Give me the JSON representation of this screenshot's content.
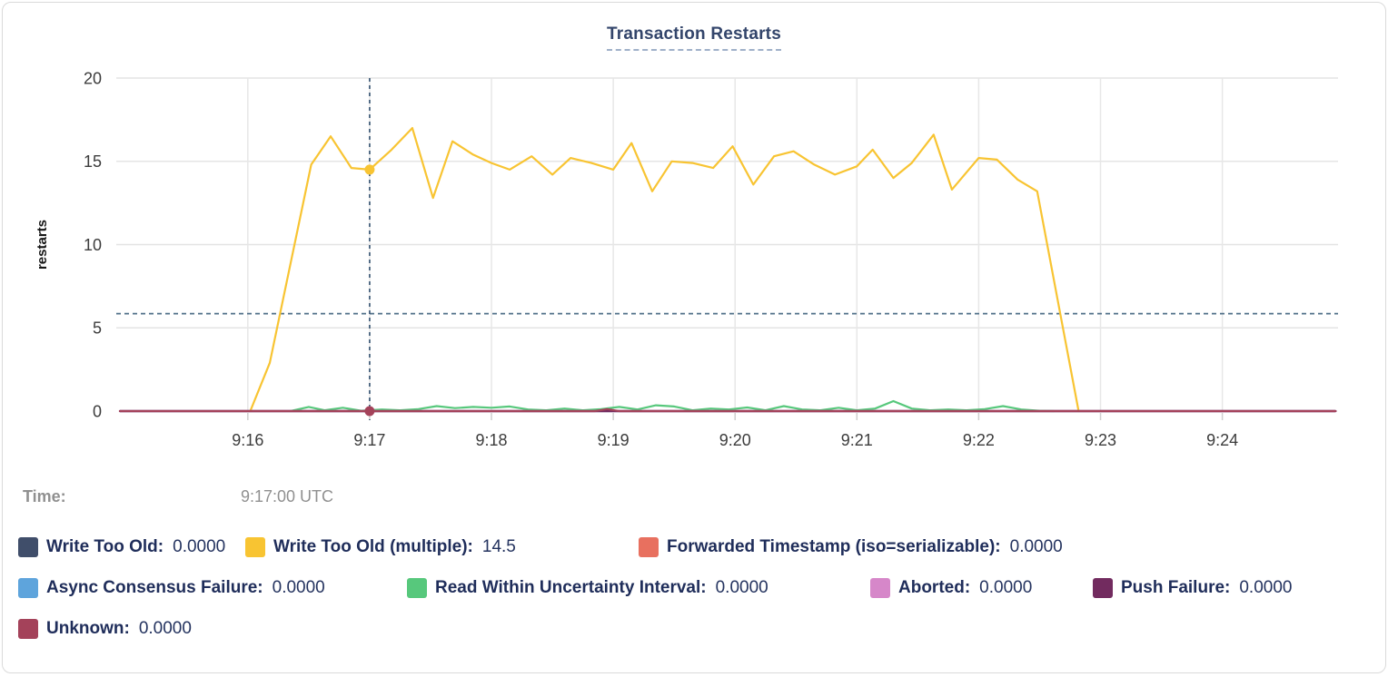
{
  "chart_data": {
    "type": "line",
    "title": "Transaction Restarts",
    "ylabel": "restarts",
    "ylim": [
      0,
      20
    ],
    "yticks": [
      0,
      5,
      10,
      15,
      20
    ],
    "x_range_minutes": [
      14.92,
      24.95
    ],
    "xticks": [
      {
        "t": 16,
        "label": "9:16"
      },
      {
        "t": 17,
        "label": "9:17"
      },
      {
        "t": 18,
        "label": "9:18"
      },
      {
        "t": 19,
        "label": "9:19"
      },
      {
        "t": 20,
        "label": "9:20"
      },
      {
        "t": 21,
        "label": "9:21"
      },
      {
        "t": 22,
        "label": "9:22"
      },
      {
        "t": 23,
        "label": "9:23"
      },
      {
        "t": 24,
        "label": "9:24"
      }
    ],
    "grid": true,
    "legend_position": "bottom",
    "mean_line_value": 5.85,
    "hover": {
      "t": 17,
      "time_label": "Time:",
      "time_value": "9:17:00 UTC",
      "points": [
        {
          "series": 1,
          "value": 14.5
        },
        {
          "series": 7,
          "value": 0
        }
      ]
    },
    "series": [
      {
        "label": "Write Too Old:",
        "value_display": "0.0000",
        "color": "#404E6A",
        "points": [
          [
            14.95,
            0
          ],
          [
            24.93,
            0
          ]
        ]
      },
      {
        "label": "Write Too Old (multiple):",
        "value_display": "14.5",
        "color": "#F8C432",
        "points": [
          [
            16.02,
            0
          ],
          [
            16.18,
            2.9
          ],
          [
            16.52,
            14.8
          ],
          [
            16.68,
            16.5
          ],
          [
            16.85,
            14.6
          ],
          [
            17.0,
            14.5
          ],
          [
            17.18,
            15.7
          ],
          [
            17.35,
            17.0
          ],
          [
            17.52,
            12.8
          ],
          [
            17.68,
            16.2
          ],
          [
            17.85,
            15.4
          ],
          [
            18.0,
            14.9
          ],
          [
            18.15,
            14.5
          ],
          [
            18.33,
            15.3
          ],
          [
            18.5,
            14.2
          ],
          [
            18.65,
            15.2
          ],
          [
            18.82,
            14.9
          ],
          [
            19.0,
            14.5
          ],
          [
            19.15,
            16.1
          ],
          [
            19.32,
            13.2
          ],
          [
            19.48,
            15.0
          ],
          [
            19.65,
            14.9
          ],
          [
            19.82,
            14.6
          ],
          [
            19.98,
            15.9
          ],
          [
            20.15,
            13.6
          ],
          [
            20.32,
            15.3
          ],
          [
            20.48,
            15.6
          ],
          [
            20.65,
            14.8
          ],
          [
            20.82,
            14.2
          ],
          [
            21.0,
            14.7
          ],
          [
            21.13,
            15.7
          ],
          [
            21.3,
            14.0
          ],
          [
            21.45,
            14.9
          ],
          [
            21.63,
            16.6
          ],
          [
            21.78,
            13.3
          ],
          [
            22.0,
            15.2
          ],
          [
            22.15,
            15.1
          ],
          [
            22.32,
            13.9
          ],
          [
            22.48,
            13.2
          ],
          [
            22.82,
            0
          ]
        ]
      },
      {
        "label": "Forwarded Timestamp (iso=serializable):",
        "value_display": "0.0000",
        "color": "#E8705F",
        "points": [
          [
            14.95,
            0
          ],
          [
            24.93,
            0
          ]
        ]
      },
      {
        "label": "Async Consensus Failure:",
        "value_display": "0.0000",
        "color": "#5EA4DC",
        "points": [
          [
            14.95,
            0
          ],
          [
            24.93,
            0
          ]
        ]
      },
      {
        "label": "Read Within Uncertainty Interval:",
        "value_display": "0.0000",
        "color": "#57C87C",
        "points": [
          [
            16.35,
            0
          ],
          [
            16.5,
            0.25
          ],
          [
            16.63,
            0.05
          ],
          [
            16.78,
            0.2
          ],
          [
            16.93,
            0.02
          ],
          [
            17.1,
            0.1
          ],
          [
            17.25,
            0.05
          ],
          [
            17.4,
            0.12
          ],
          [
            17.55,
            0.3
          ],
          [
            17.7,
            0.18
          ],
          [
            17.85,
            0.25
          ],
          [
            18.0,
            0.2
          ],
          [
            18.15,
            0.28
          ],
          [
            18.3,
            0.1
          ],
          [
            18.45,
            0.05
          ],
          [
            18.6,
            0.15
          ],
          [
            18.75,
            0.05
          ],
          [
            18.9,
            0.12
          ],
          [
            19.05,
            0.25
          ],
          [
            19.2,
            0.1
          ],
          [
            19.35,
            0.35
          ],
          [
            19.5,
            0.28
          ],
          [
            19.65,
            0.05
          ],
          [
            19.8,
            0.15
          ],
          [
            19.95,
            0.1
          ],
          [
            20.1,
            0.22
          ],
          [
            20.25,
            0.05
          ],
          [
            20.4,
            0.3
          ],
          [
            20.55,
            0.1
          ],
          [
            20.7,
            0.05
          ],
          [
            20.85,
            0.2
          ],
          [
            21.0,
            0.05
          ],
          [
            21.15,
            0.15
          ],
          [
            21.3,
            0.6
          ],
          [
            21.45,
            0.15
          ],
          [
            21.6,
            0.05
          ],
          [
            21.75,
            0.1
          ],
          [
            21.9,
            0.05
          ],
          [
            22.05,
            0.12
          ],
          [
            22.2,
            0.3
          ],
          [
            22.35,
            0.1
          ],
          [
            22.5,
            0.02
          ],
          [
            22.62,
            0
          ]
        ]
      },
      {
        "label": "Aborted:",
        "value_display": "0.0000",
        "color": "#D687C9",
        "points": [
          [
            14.95,
            0
          ],
          [
            24.93,
            0
          ]
        ]
      },
      {
        "label": "Push Failure:",
        "value_display": "0.0000",
        "color": "#722B5F",
        "points": [
          [
            14.95,
            0
          ],
          [
            24.93,
            0
          ]
        ]
      },
      {
        "label": "Unknown:",
        "value_display": "0.0000",
        "color": "#A4425A",
        "points": [
          [
            14.95,
            0
          ],
          [
            18.85,
            0
          ],
          [
            18.95,
            0.12
          ],
          [
            19.05,
            0
          ],
          [
            24.93,
            0
          ]
        ]
      }
    ]
  }
}
